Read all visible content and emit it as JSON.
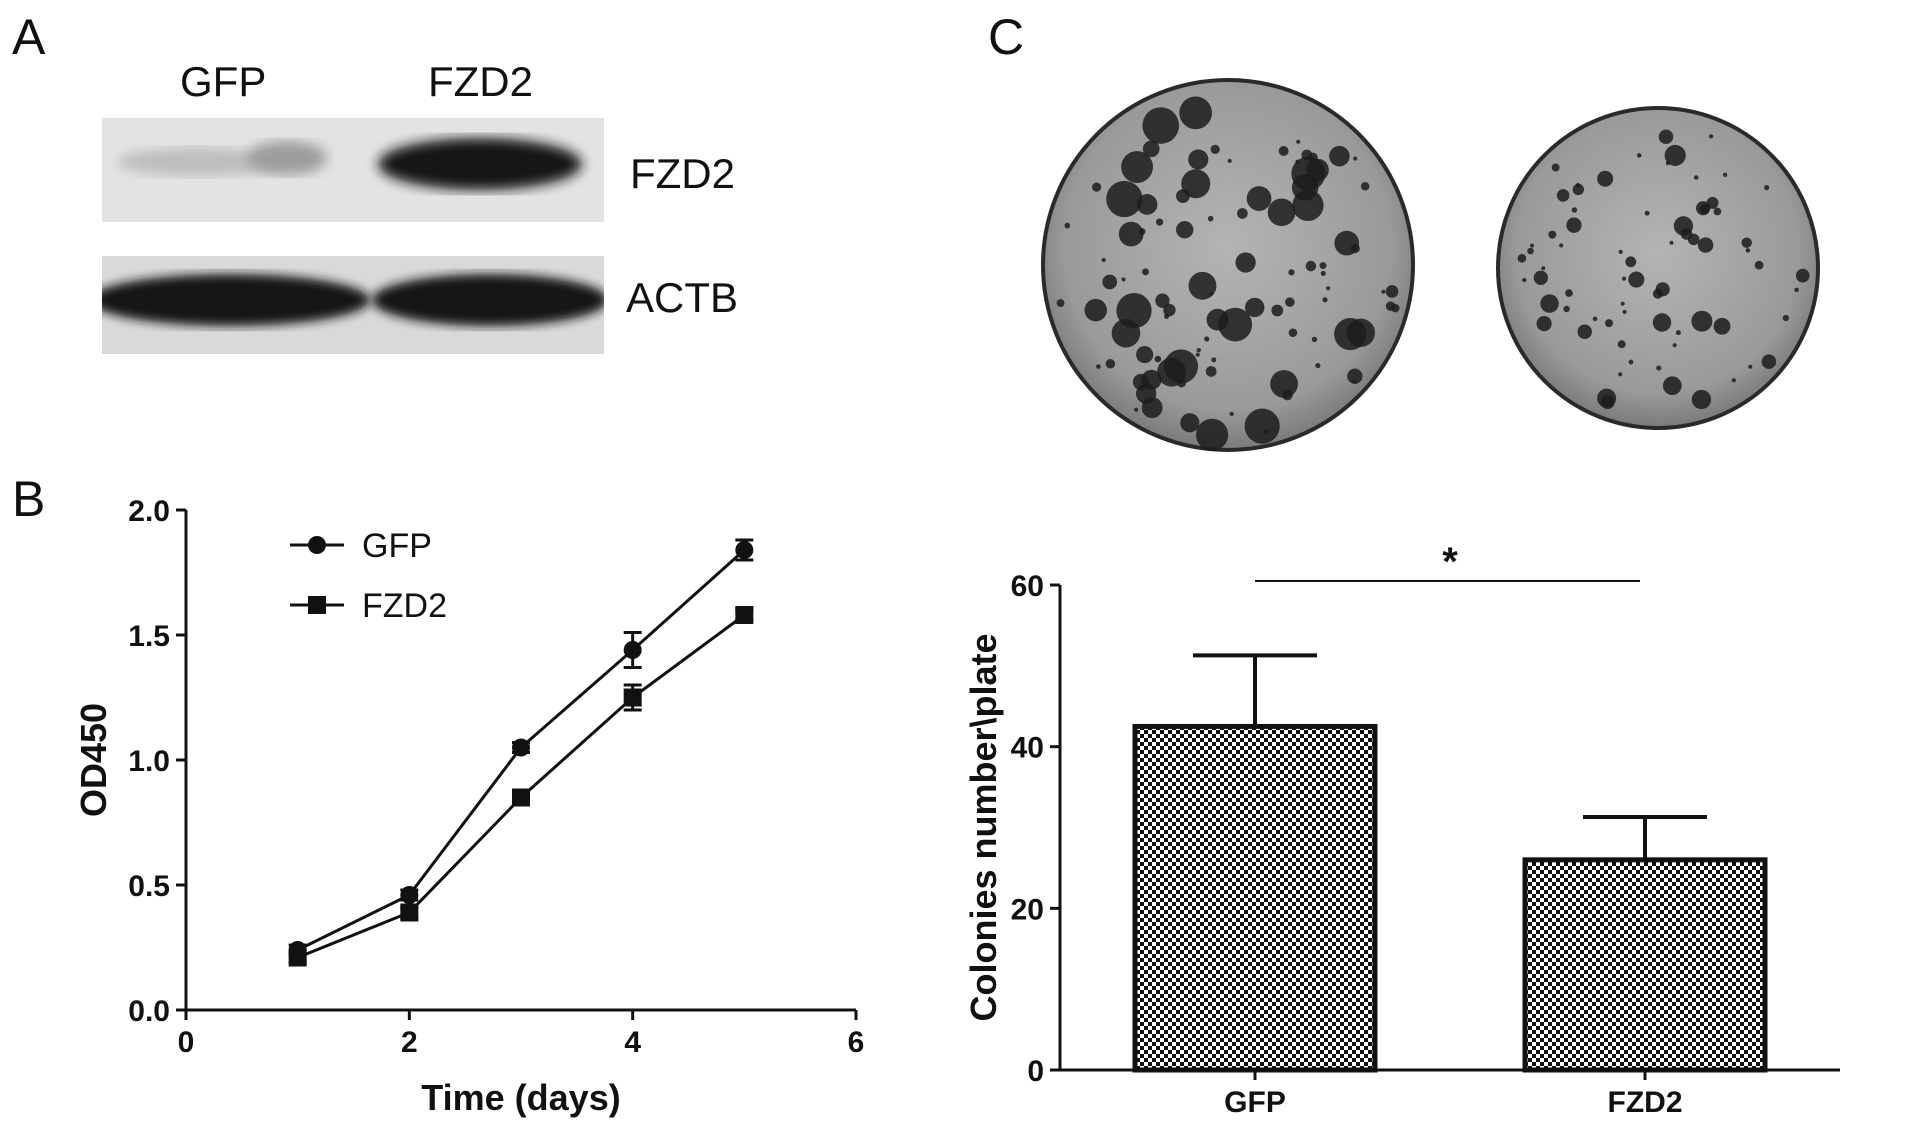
{
  "panels": {
    "a": "A",
    "b": "B",
    "c": "C"
  },
  "western_blot": {
    "lane_labels": [
      "GFP",
      "FZD2"
    ],
    "band_labels": [
      "FZD2",
      "ACTB"
    ]
  },
  "colors": {
    "ink": "#111111",
    "blot_bg": "#e3e3e3",
    "plate_bg": "#9a9a9a",
    "colony": "#1c1c1c"
  },
  "chart_data": [
    {
      "type": "line",
      "panel": "B",
      "xlabel": "Time  (days)",
      "ylabel": "OD450",
      "xlim": [
        0,
        6
      ],
      "ylim": [
        0,
        2.0
      ],
      "xticks": [
        "0",
        "2",
        "4",
        "6"
      ],
      "yticks": [
        "0.0",
        "0.5",
        "1.0",
        "1.5",
        "2.0"
      ],
      "legend_position": "top-left",
      "x": [
        1,
        2,
        3,
        4,
        5
      ],
      "series": [
        {
          "name": "GFP",
          "marker": "circle",
          "values": [
            0.24,
            0.46,
            1.05,
            1.44,
            1.84
          ],
          "errors": [
            0.02,
            0.02,
            0.02,
            0.07,
            0.04
          ]
        },
        {
          "name": "FZD2",
          "marker": "square",
          "values": [
            0.21,
            0.39,
            0.85,
            1.25,
            1.58
          ],
          "errors": [
            0.02,
            0.02,
            0.02,
            0.05,
            0.02
          ]
        }
      ]
    },
    {
      "type": "bar",
      "panel": "C",
      "categories": [
        "GFP",
        "FZD2"
      ],
      "values": [
        42.5,
        26.0
      ],
      "errors": [
        8.8,
        5.3
      ],
      "ylabel": "Colonies number\\plate",
      "ylim": [
        0,
        60
      ],
      "yticks": [
        "0",
        "20",
        "40",
        "60"
      ],
      "significance": "*",
      "pattern": "checkerboard"
    }
  ]
}
